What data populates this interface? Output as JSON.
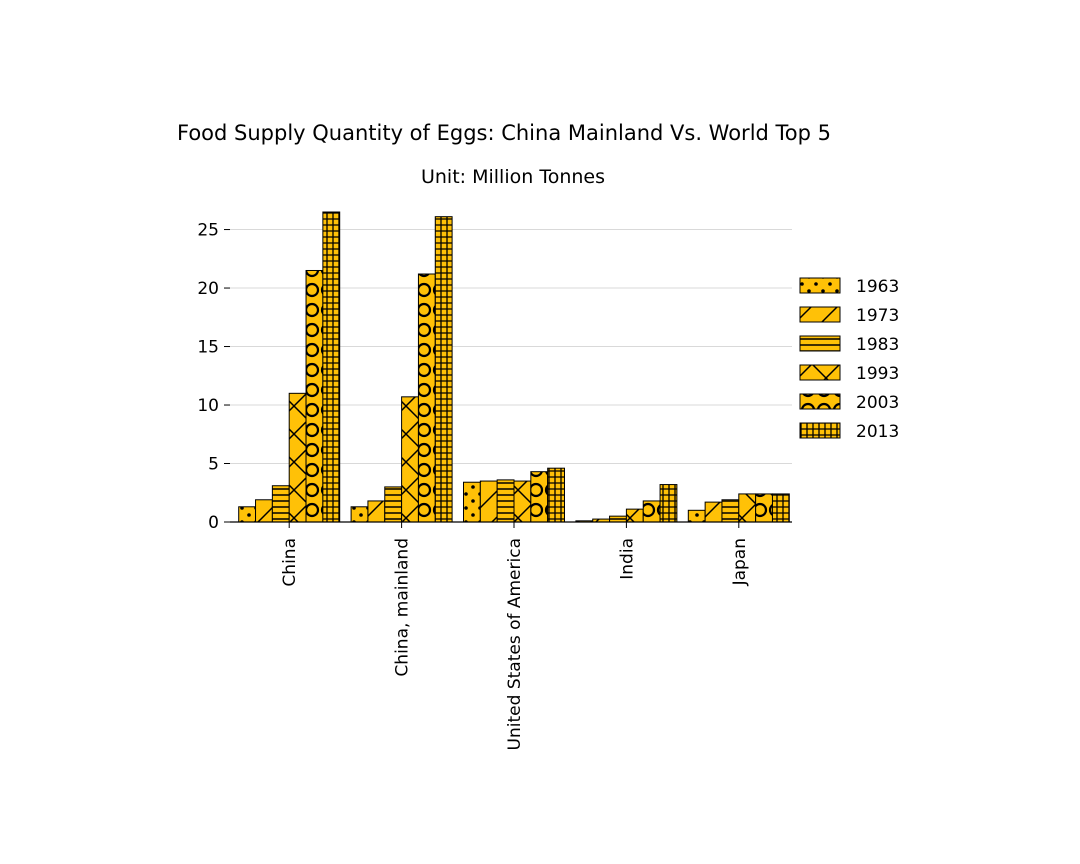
{
  "chart_data": {
    "type": "bar",
    "title": "Food Supply Quantity of Eggs: China Mainland Vs. World Top 5",
    "subtitle": "Unit: Million Tonnes",
    "xlabel": "",
    "ylabel": "",
    "categories": [
      "China",
      "China, mainland",
      "United States of America",
      "India",
      "Japan"
    ],
    "ylim": [
      0,
      26.5
    ],
    "yticks": [
      0,
      5,
      10,
      15,
      20,
      25
    ],
    "grid": "horizontal",
    "legend_position": "right",
    "bar_color": "#FFC107",
    "edge_color": "#000000",
    "series": [
      {
        "name": "1963",
        "pattern": "dots",
        "values": [
          1.3,
          1.3,
          3.4,
          0.1,
          1.0
        ]
      },
      {
        "name": "1973",
        "pattern": "diagonal",
        "values": [
          1.9,
          1.8,
          3.5,
          0.25,
          1.7
        ]
      },
      {
        "name": "1983",
        "pattern": "horizontal",
        "values": [
          3.1,
          3.0,
          3.6,
          0.5,
          1.9
        ]
      },
      {
        "name": "1993",
        "pattern": "cross",
        "values": [
          11.0,
          10.7,
          3.5,
          1.1,
          2.4
        ]
      },
      {
        "name": "2003",
        "pattern": "circles",
        "values": [
          21.5,
          21.2,
          4.3,
          1.8,
          2.4
        ]
      },
      {
        "name": "2013",
        "pattern": "grid",
        "values": [
          26.5,
          26.1,
          4.6,
          3.2,
          2.4
        ]
      }
    ]
  }
}
